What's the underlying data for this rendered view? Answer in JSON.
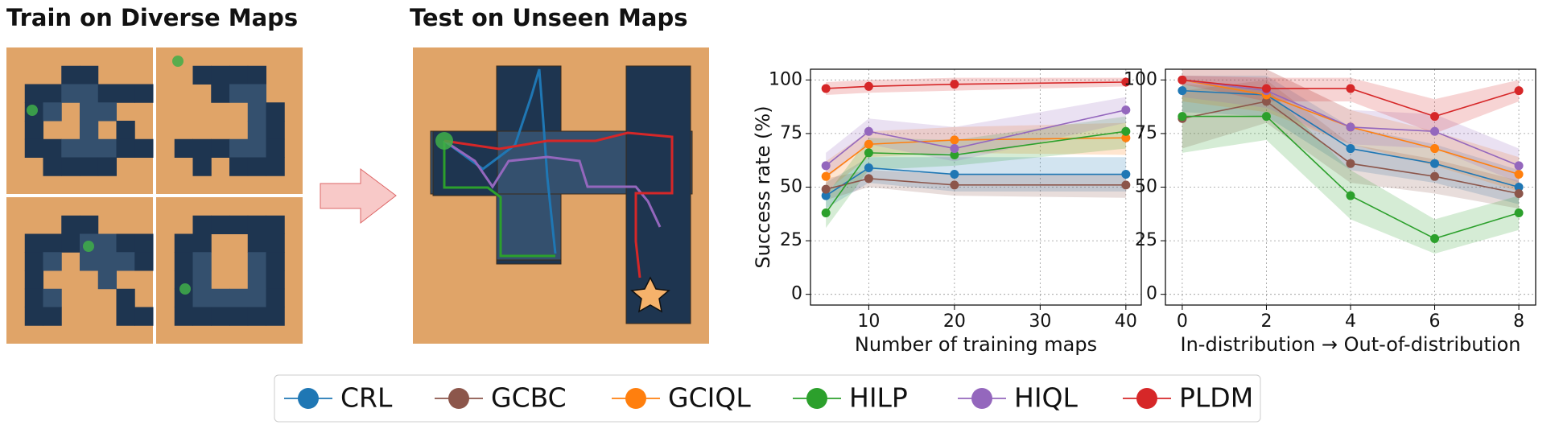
{
  "panels": {
    "train_title": "Train on Diverse Maps",
    "test_title": "Test on Unseen Maps"
  },
  "chart_data": [
    {
      "type": "line",
      "x": [
        5,
        10,
        20,
        40
      ],
      "xlim": [
        3.2,
        41.8
      ],
      "xticks": [
        10,
        20,
        30,
        40
      ],
      "ylim": [
        -5,
        105
      ],
      "yticks": [
        0,
        25,
        50,
        75,
        100
      ],
      "xlabel": "Number of training maps",
      "ylabel": "Success rate (%)",
      "grid": true,
      "series": [
        {
          "name": "CRL",
          "color": "#1f77b4",
          "values": [
            46,
            59,
            56,
            56
          ],
          "lower": [
            40,
            52,
            48,
            48
          ],
          "upper": [
            52,
            64,
            64,
            64
          ]
        },
        {
          "name": "GCBC",
          "color": "#8c564b",
          "values": [
            49,
            54,
            51,
            51
          ],
          "lower": [
            44,
            50,
            46,
            45
          ],
          "upper": [
            54,
            58,
            56,
            56
          ]
        },
        {
          "name": "GCIQL",
          "color": "#ff7f0e",
          "values": [
            55,
            70,
            72,
            73
          ],
          "lower": [
            48,
            64,
            66,
            65
          ],
          "upper": [
            62,
            76,
            78,
            80
          ]
        },
        {
          "name": "HILP",
          "color": "#2ca02c",
          "values": [
            38,
            66,
            65,
            76
          ],
          "lower": [
            31,
            58,
            60,
            68
          ],
          "upper": [
            46,
            73,
            72,
            83
          ]
        },
        {
          "name": "HIQL",
          "color": "#9467bd",
          "values": [
            60,
            76,
            68,
            86
          ],
          "lower": [
            54,
            70,
            62,
            80
          ],
          "upper": [
            66,
            82,
            78,
            92
          ]
        },
        {
          "name": "PLDM",
          "color": "#d62728",
          "values": [
            96,
            97,
            98,
            99
          ],
          "lower": [
            93,
            94,
            95,
            97
          ],
          "upper": [
            99,
            100,
            101,
            101
          ]
        }
      ]
    },
    {
      "type": "line",
      "x": [
        0,
        2,
        4,
        6,
        8
      ],
      "xlim": [
        -0.4,
        8.4
      ],
      "xticks": [
        0,
        2,
        4,
        6,
        8
      ],
      "ylim": [
        -5,
        105
      ],
      "yticks": [
        0,
        25,
        50,
        75,
        100
      ],
      "xlabel": "In-distribution → Out-of-distribution",
      "grid": true,
      "series": [
        {
          "color": "#1f77b4",
          "values": [
            95,
            93,
            68,
            61,
            50
          ],
          "lower": [
            85,
            83,
            58,
            52,
            42
          ],
          "upper": [
            102,
            102,
            78,
            70,
            58
          ]
        },
        {
          "color": "#8c564b",
          "values": [
            82,
            90,
            61,
            55,
            47
          ],
          "lower": [
            68,
            80,
            52,
            47,
            40
          ],
          "upper": [
            95,
            100,
            70,
            63,
            53
          ]
        },
        {
          "color": "#ff7f0e",
          "values": [
            100,
            93,
            78,
            68,
            56
          ],
          "lower": [
            90,
            85,
            70,
            60,
            48
          ],
          "upper": [
            105,
            105,
            86,
            76,
            64
          ]
        },
        {
          "color": "#2ca02c",
          "values": [
            83,
            83,
            46,
            26,
            38
          ],
          "lower": [
            66,
            72,
            35,
            19,
            30
          ],
          "upper": [
            98,
            96,
            58,
            35,
            46
          ]
        },
        {
          "color": "#9467bd",
          "values": [
            100,
            95,
            78,
            76,
            60
          ],
          "lower": [
            92,
            87,
            70,
            68,
            52
          ],
          "upper": [
            105,
            105,
            86,
            84,
            68
          ]
        },
        {
          "color": "#d62728",
          "values": [
            100,
            96,
            96,
            83,
            95
          ],
          "lower": [
            98,
            90,
            90,
            75,
            90
          ],
          "upper": [
            102,
            101,
            101,
            91,
            100
          ]
        }
      ]
    }
  ]
}
